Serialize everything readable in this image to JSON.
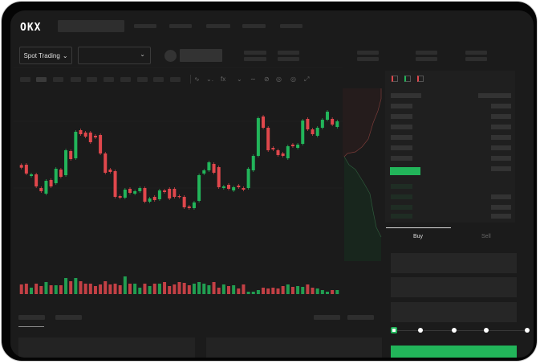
{
  "header": {
    "logo": "OKX"
  },
  "toolbar": {
    "market_type": "Spot Trading",
    "pair_select_value": "",
    "dropdown_icon": "chevron-down-icon"
  },
  "chart_tools": [
    "line-icon",
    "indicator-icon",
    "fx-icon",
    "draw-icon",
    "pencil-icon",
    "camera-icon",
    "settings-icon",
    "fullscreen-icon"
  ],
  "order_panel": {
    "tabs": [
      "Buy",
      "Sell"
    ],
    "active_tab": "Buy",
    "slider_percent": 0
  },
  "colors": {
    "up": "#22b55a",
    "down": "#e0474c",
    "background": "#1b1b1b",
    "accent": "#22b55a"
  },
  "chart_data": {
    "type": "candlestick",
    "candles": [
      {
        "o": 96.7,
        "c": 93.3
      },
      {
        "o": 97,
        "c": 86
      },
      {
        "o": 83,
        "c": 85
      },
      {
        "o": 85,
        "c": 70
      },
      {
        "o": 68,
        "c": 64
      },
      {
        "o": 61,
        "c": 77
      },
      {
        "o": 78,
        "c": 70
      },
      {
        "o": 74,
        "c": 92
      },
      {
        "o": 91,
        "c": 82
      },
      {
        "o": 84,
        "c": 115
      },
      {
        "o": 114,
        "c": 104
      },
      {
        "o": 105,
        "c": 138
      },
      {
        "o": 140,
        "c": 135
      },
      {
        "o": 137,
        "c": 132
      },
      {
        "o": 137,
        "c": 125
      },
      {
        "o": 133,
        "c": 131
      },
      {
        "o": 134,
        "c": 111
      },
      {
        "o": 111,
        "c": 87
      },
      {
        "o": 91,
        "c": 88
      },
      {
        "o": 89,
        "c": 57
      },
      {
        "o": 58,
        "c": 56
      },
      {
        "o": 56,
        "c": 66
      },
      {
        "o": 67,
        "c": 62
      },
      {
        "o": 61,
        "c": 64
      },
      {
        "o": 64,
        "c": 68
      },
      {
        "o": 68,
        "c": 51
      },
      {
        "o": 51,
        "c": 55
      },
      {
        "o": 57,
        "c": 53
      },
      {
        "o": 54,
        "c": 65
      },
      {
        "o": 65,
        "c": 63
      },
      {
        "o": 67,
        "c": 55
      },
      {
        "o": 67,
        "c": 57
      },
      {
        "o": 58,
        "c": 57
      },
      {
        "o": 57,
        "c": 44
      },
      {
        "o": 45,
        "c": 43
      },
      {
        "o": 43,
        "c": 50
      },
      {
        "o": 52,
        "c": 84
      },
      {
        "o": 86,
        "c": 90
      },
      {
        "o": 90,
        "c": 100
      },
      {
        "o": 98,
        "c": 87
      },
      {
        "o": 94,
        "c": 69
      },
      {
        "o": 68,
        "c": 70
      },
      {
        "o": 72,
        "c": 67
      },
      {
        "o": 65,
        "c": 69
      },
      {
        "o": 71,
        "c": 69
      },
      {
        "o": 68,
        "c": 66
      },
      {
        "o": 68,
        "c": 92
      },
      {
        "o": 90,
        "c": 108
      },
      {
        "o": 108,
        "c": 155
      },
      {
        "o": 157,
        "c": 143
      },
      {
        "o": 143,
        "c": 115
      },
      {
        "o": 118,
        "c": 116
      },
      {
        "o": 115,
        "c": 109
      },
      {
        "o": 111,
        "c": 108
      },
      {
        "o": 105,
        "c": 120
      },
      {
        "o": 122,
        "c": 120
      },
      {
        "o": 118,
        "c": 122
      },
      {
        "o": 123,
        "c": 152
      },
      {
        "o": 154,
        "c": 141
      },
      {
        "o": 141,
        "c": 135
      },
      {
        "o": 133,
        "c": 143
      },
      {
        "o": 143,
        "c": 153
      },
      {
        "o": 153,
        "c": 163
      },
      {
        "o": 154,
        "c": 147
      },
      {
        "o": 144,
        "c": 151
      }
    ],
    "volume": [
      12,
      13,
      8,
      13,
      10,
      15,
      11,
      11,
      11,
      20,
      16,
      20,
      16,
      13,
      13,
      10,
      12,
      16,
      12,
      13,
      11,
      22,
      13,
      13,
      8,
      13,
      10,
      13,
      13,
      15,
      10,
      12,
      15,
      14,
      11,
      13,
      15,
      13,
      11,
      15,
      8,
      12,
      10,
      11,
      7,
      12,
      3,
      3,
      5,
      8,
      7,
      8,
      7,
      10,
      12,
      9,
      10,
      9,
      12,
      8,
      7,
      5,
      3,
      5,
      5
    ]
  }
}
